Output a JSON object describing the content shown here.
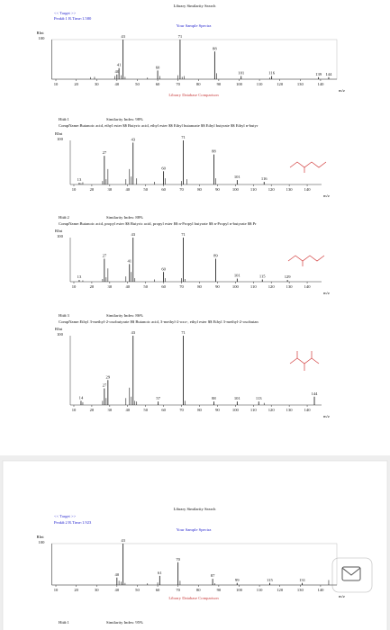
{
  "page1": {
    "header": {
      "title": "Library Similarity Search",
      "target": "<< Target >>",
      "peak": "Peak#:1  R.Time:1.580",
      "sample_title": "Your Sample Spectra"
    },
    "sample": {
      "y_label": "RInt",
      "y_top": "100",
      "x_label": "m/z",
      "xlim": [
        8,
        148
      ],
      "ylim": [
        0,
        100
      ],
      "xticks": [
        10,
        20,
        30,
        40,
        50,
        60,
        70,
        80,
        90,
        100,
        110,
        120,
        130,
        140
      ],
      "peaks": [
        {
          "mz": 40,
          "intensity": 12
        },
        {
          "mz": 41,
          "intensity": 28
        },
        {
          "mz": 43,
          "intensity": 100
        },
        {
          "mz": 60,
          "intensity": 22
        },
        {
          "mz": 71,
          "intensity": 100
        },
        {
          "mz": 88,
          "intensity": 70
        },
        {
          "mz": 101,
          "intensity": 8
        },
        {
          "mz": 116,
          "intensity": 8
        },
        {
          "mz": 139,
          "intensity": 5
        },
        {
          "mz": 144,
          "intensity": 5
        }
      ],
      "minor_peaks": [
        {
          "mz": 27,
          "intensity": 5
        },
        {
          "mz": 29,
          "intensity": 6
        },
        {
          "mz": 39,
          "intensity": 8
        },
        {
          "mz": 42,
          "intensity": 10
        },
        {
          "mz": 44,
          "intensity": 6
        },
        {
          "mz": 55,
          "intensity": 4
        },
        {
          "mz": 61,
          "intensity": 8
        },
        {
          "mz": 70,
          "intensity": 10
        },
        {
          "mz": 72,
          "intensity": 6
        },
        {
          "mz": 73,
          "intensity": 8
        },
        {
          "mz": 89,
          "intensity": 15
        },
        {
          "mz": 115,
          "intensity": 4
        }
      ]
    },
    "comparison": "Library Database Comparison",
    "hits": [
      {
        "hit": "Hit#:1",
        "similarity": "Similarity Index: 98%",
        "compname": "CompName:Butanoic acid, ethyl ester $$ Butyric acid, ethyl ester $$ Ethyl butanoate $$ Ethyl butyrate $$ Ethyl n-butyr",
        "spectrum": {
          "y_label": "RInt",
          "y_top": "100",
          "x_label": "m/z",
          "xlim": [
            8,
            148
          ],
          "ylim": [
            0,
            100
          ],
          "xticks": [
            10,
            20,
            30,
            40,
            50,
            60,
            70,
            80,
            90,
            100,
            110,
            120,
            130,
            140
          ],
          "peaks": [
            {
              "mz": 13,
              "intensity": 4
            },
            {
              "mz": 27,
              "intensity": 65
            },
            {
              "mz": 43,
              "intensity": 95
            },
            {
              "mz": 60,
              "intensity": 30
            },
            {
              "mz": 71,
              "intensity": 100
            },
            {
              "mz": 88,
              "intensity": 68
            },
            {
              "mz": 101,
              "intensity": 10
            },
            {
              "mz": 116,
              "intensity": 6
            }
          ],
          "minor_peaks": [
            {
              "mz": 14,
              "intensity": 3
            },
            {
              "mz": 15,
              "intensity": 5
            },
            {
              "mz": 26,
              "intensity": 8
            },
            {
              "mz": 28,
              "intensity": 12
            },
            {
              "mz": 29,
              "intensity": 35
            },
            {
              "mz": 39,
              "intensity": 12
            },
            {
              "mz": 41,
              "intensity": 35
            },
            {
              "mz": 42,
              "intensity": 18
            },
            {
              "mz": 45,
              "intensity": 14
            },
            {
              "mz": 55,
              "intensity": 6
            },
            {
              "mz": 61,
              "intensity": 14
            },
            {
              "mz": 70,
              "intensity": 8
            },
            {
              "mz": 73,
              "intensity": 12
            },
            {
              "mz": 89,
              "intensity": 14
            }
          ]
        }
      },
      {
        "hit": "Hit#:2",
        "similarity": "Similarity Index: 88%",
        "compname": "CompName:Butanoic acid, propyl ester $$ Butyric acid, propyl ester $$ n-Propyl butyrate $$ n-Propyl n-butyrate $$ Pr",
        "spectrum": {
          "y_label": "RInt",
          "y_top": "100",
          "x_label": "m/z",
          "xlim": [
            8,
            148
          ],
          "ylim": [
            0,
            100
          ],
          "xticks": [
            10,
            20,
            30,
            40,
            50,
            60,
            70,
            80,
            90,
            100,
            110,
            120,
            130,
            140
          ],
          "peaks": [
            {
              "mz": 13,
              "intensity": 4
            },
            {
              "mz": 27,
              "intensity": 52
            },
            {
              "mz": 41,
              "intensity": 40
            },
            {
              "mz": 43,
              "intensity": 100
            },
            {
              "mz": 60,
              "intensity": 22
            },
            {
              "mz": 71,
              "intensity": 100
            },
            {
              "mz": 89,
              "intensity": 52
            },
            {
              "mz": 101,
              "intensity": 7
            },
            {
              "mz": 115,
              "intensity": 5
            },
            {
              "mz": 129,
              "intensity": 4
            }
          ],
          "minor_peaks": [
            {
              "mz": 15,
              "intensity": 3
            },
            {
              "mz": 26,
              "intensity": 6
            },
            {
              "mz": 28,
              "intensity": 10
            },
            {
              "mz": 29,
              "intensity": 30
            },
            {
              "mz": 39,
              "intensity": 12
            },
            {
              "mz": 42,
              "intensity": 22
            },
            {
              "mz": 44,
              "intensity": 8
            },
            {
              "mz": 55,
              "intensity": 5
            },
            {
              "mz": 61,
              "intensity": 8
            },
            {
              "mz": 70,
              "intensity": 8
            },
            {
              "mz": 72,
              "intensity": 6
            }
          ]
        }
      },
      {
        "hit": "Hit#:3",
        "similarity": "Similarity Index: 86%",
        "compname": "CompName:Ethyl 3-methyl-2-oxobutyrate $$ Butanoic acid, 3-methyl-2-oxo-, ethyl ester $$ Ethyl 3-methyl-2-oxobutan",
        "spectrum": {
          "y_label": "RInt",
          "y_top": "100",
          "x_label": "m/z",
          "xlim": [
            8,
            148
          ],
          "ylim": [
            0,
            100
          ],
          "xticks": [
            10,
            20,
            30,
            40,
            50,
            60,
            70,
            80,
            90,
            100,
            110,
            120,
            130,
            140
          ],
          "peaks": [
            {
              "mz": 14,
              "intensity": 6
            },
            {
              "mz": 27,
              "intensity": 24
            },
            {
              "mz": 29,
              "intensity": 36
            },
            {
              "mz": 43,
              "intensity": 100
            },
            {
              "mz": 57,
              "intensity": 5
            },
            {
              "mz": 71,
              "intensity": 100
            },
            {
              "mz": 88,
              "intensity": 5
            },
            {
              "mz": 101,
              "intensity": 5
            },
            {
              "mz": 113,
              "intensity": 5
            },
            {
              "mz": 144,
              "intensity": 12
            }
          ],
          "minor_peaks": [
            {
              "mz": 15,
              "intensity": 4
            },
            {
              "mz": 26,
              "intensity": 6
            },
            {
              "mz": 28,
              "intensity": 10
            },
            {
              "mz": 39,
              "intensity": 10
            },
            {
              "mz": 41,
              "intensity": 25
            },
            {
              "mz": 42,
              "intensity": 12
            },
            {
              "mz": 44,
              "intensity": 6
            },
            {
              "mz": 45,
              "intensity": 5
            },
            {
              "mz": 72,
              "intensity": 6
            },
            {
              "mz": 116,
              "intensity": 3
            }
          ]
        }
      }
    ]
  },
  "page2": {
    "header": {
      "title": "Library Similarity Search",
      "target": "<< Target >>",
      "peak": "Peak#:2  R.Time:1.923",
      "sample_title": "Your Sample Spectra"
    },
    "sample": {
      "y_label": "RInt",
      "y_top": "100",
      "x_label": "m/z",
      "xlim": [
        8,
        148
      ],
      "ylim": [
        0,
        100
      ],
      "xticks": [
        10,
        20,
        30,
        40,
        50,
        60,
        70,
        80,
        90,
        100,
        110,
        120,
        130,
        140
      ],
      "peaks": [
        {
          "mz": 40,
          "intensity": 18
        },
        {
          "mz": 43,
          "intensity": 100
        },
        {
          "mz": 61,
          "intensity": 22
        },
        {
          "mz": 70,
          "intensity": 55
        },
        {
          "mz": 87,
          "intensity": 15
        },
        {
          "mz": 99,
          "intensity": 5
        },
        {
          "mz": 115,
          "intensity": 5
        },
        {
          "mz": 131,
          "intensity": 5
        }
      ],
      "minor_peaks": [
        {
          "mz": 41,
          "intensity": 10
        },
        {
          "mz": 42,
          "intensity": 8
        },
        {
          "mz": 44,
          "intensity": 5
        },
        {
          "mz": 55,
          "intensity": 4
        },
        {
          "mz": 60,
          "intensity": 6
        },
        {
          "mz": 71,
          "intensity": 10
        },
        {
          "mz": 88,
          "intensity": 4
        },
        {
          "mz": 144,
          "intensity": 12
        }
      ]
    },
    "comparison": "Library Database Comparison",
    "hits": [
      {
        "hit": "Hit#:1",
        "similarity": "Similarity Index: 95%"
      }
    ]
  }
}
